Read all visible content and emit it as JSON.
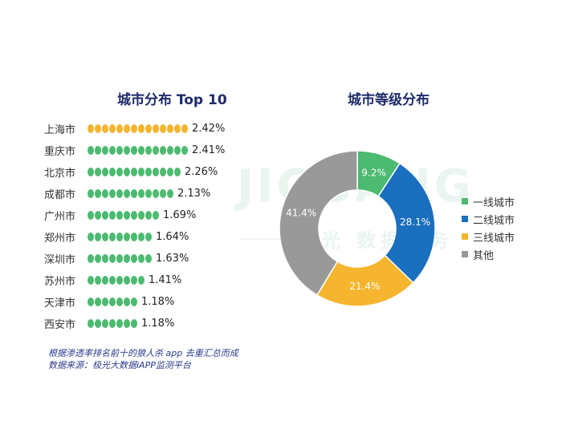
{
  "watermark": {
    "brand": "JIGUANG",
    "sub": "极光 数据服务"
  },
  "chart_data": [
    {
      "type": "bar",
      "title": "城市分布 Top 10",
      "categories": [
        "上海市",
        "重庆市",
        "北京市",
        "成都市",
        "广州市",
        "郑州市",
        "深圳市",
        "苏州市",
        "天津市",
        "西安市"
      ],
      "values": [
        2.42,
        2.41,
        2.26,
        2.13,
        1.69,
        1.64,
        1.63,
        1.41,
        1.18,
        1.18
      ],
      "value_labels": [
        "2.42%",
        "2.41%",
        "2.26%",
        "2.13%",
        "1.69%",
        "1.64%",
        "1.63%",
        "1.41%",
        "1.18%",
        "1.18%"
      ],
      "highlight_color": "#f5b52e",
      "bar_color": "#4cba70"
    },
    {
      "type": "pie",
      "title": "城市等级分布",
      "labels": [
        "一线城市",
        "二线城市",
        "三线城市",
        "其他"
      ],
      "values": [
        9.2,
        28.1,
        21.4,
        41.4
      ],
      "value_labels": [
        "9.2%",
        "28.1%",
        "21.4%",
        "41.4%"
      ],
      "colors": [
        "#4cba70",
        "#1a6fbe",
        "#f5b52e",
        "#999999"
      ],
      "legend_position": "right"
    }
  ],
  "footnotes": [
    "根据渗透率排名前十的狼人杀 app 去重汇总而成",
    "数据来源：极光大数据iAPP监测平台"
  ]
}
